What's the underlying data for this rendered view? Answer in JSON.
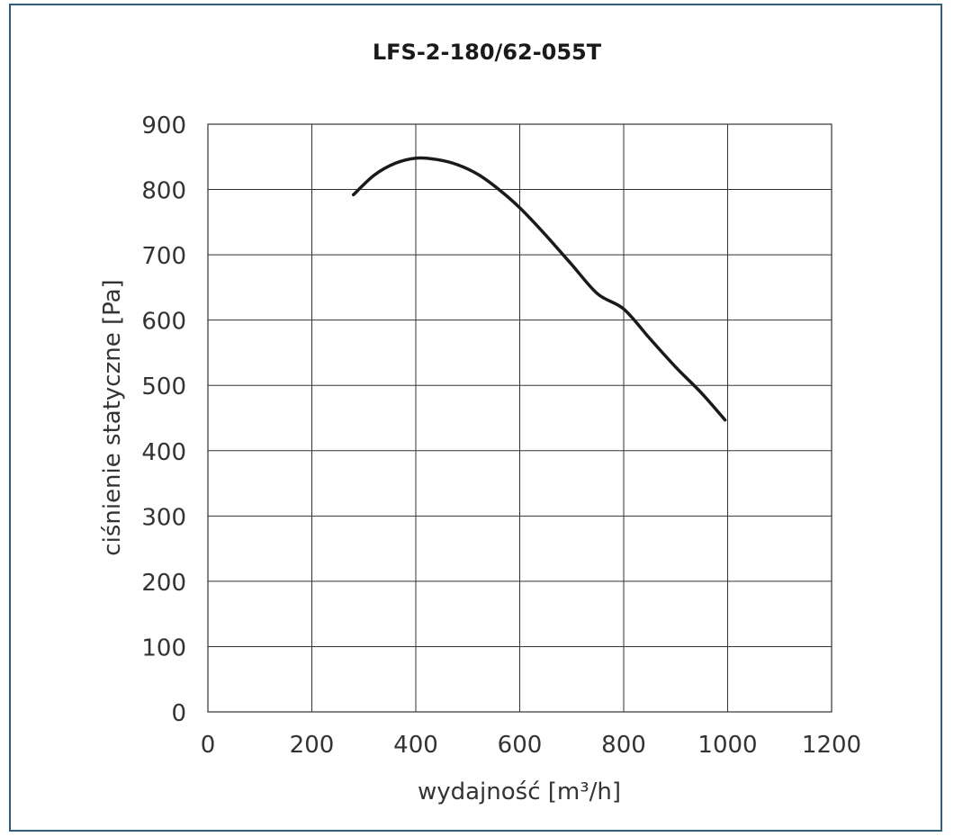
{
  "chart_data": {
    "type": "line",
    "title": "LFS-2-180/62-055T",
    "xlabel": "wydajność [m³/h]",
    "ylabel": "ciśnienie statyczne [Pa]",
    "xlim": [
      0,
      1200
    ],
    "ylim": [
      0,
      900
    ],
    "x_ticks": [
      "0",
      "200",
      "400",
      "600",
      "800",
      "1000",
      "1200"
    ],
    "y_ticks": [
      "0",
      "100",
      "200",
      "300",
      "400",
      "500",
      "600",
      "700",
      "800",
      "900"
    ],
    "grid": true,
    "series": [
      {
        "x": [
          280,
          320,
          360,
          400,
          440,
          480,
          520,
          560,
          600,
          650,
          700,
          750,
          800,
          850,
          900,
          950,
          995
        ],
        "y": [
          792,
          822,
          840,
          848,
          846,
          838,
          823,
          800,
          772,
          730,
          685,
          640,
          617,
          572,
          528,
          488,
          447
        ]
      }
    ],
    "line_color": "#1a1a1a",
    "grid_color": "#333333",
    "frame_color": "#2f5f7a"
  }
}
